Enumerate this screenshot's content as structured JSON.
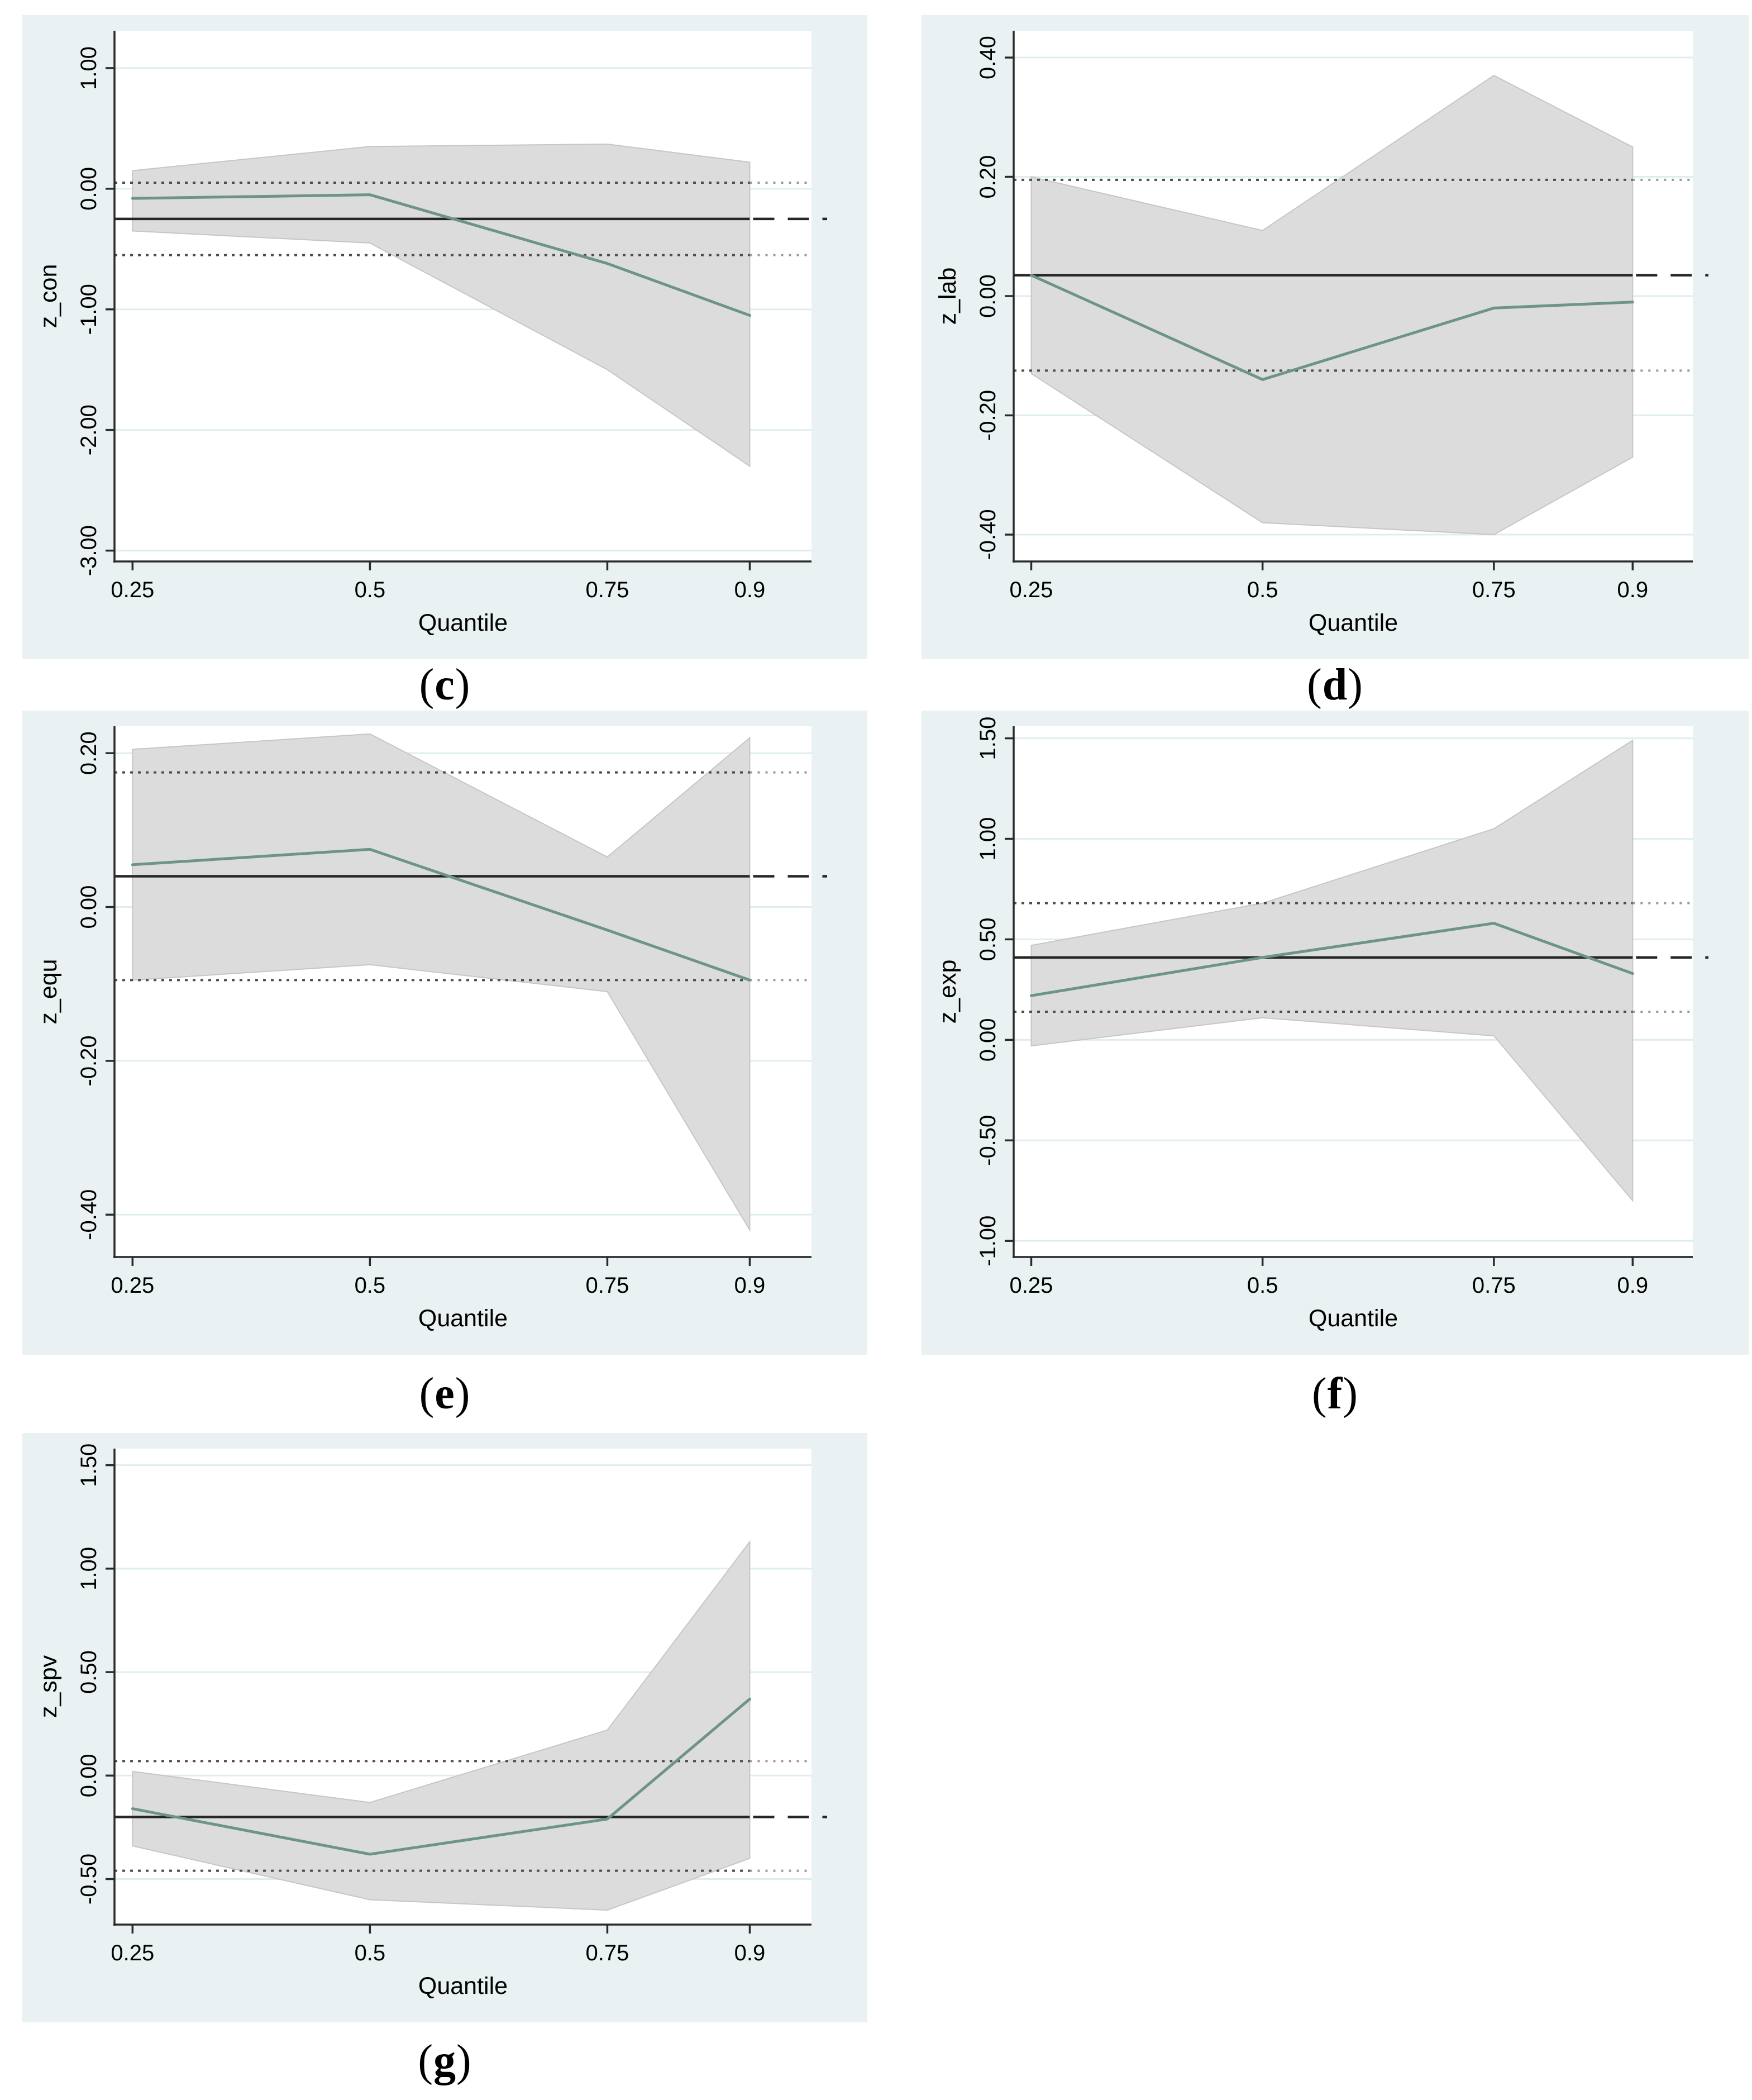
{
  "style": {
    "panel_background": "#e9f1f2",
    "plot_background": "#ffffff",
    "gridline_color": "#e0edef",
    "band_fill": "#dcdcdc",
    "band_edge": "#c6c6c6",
    "quantile_line_color": "#6d9487",
    "ols_line_color": "#262626",
    "ols_ci_dotted_color": "#4d4d4d",
    "ols_ci_dotted_color_extension": "#9a9a9a",
    "axis_color": "#2a2a2a"
  },
  "chart_data": [
    {
      "type": "line",
      "id": "c",
      "caption": {
        "open": "(",
        "letter": "c",
        "close": ")"
      },
      "ylabel": "z_con",
      "xlabel": "Quantile",
      "x": [
        0.25,
        0.5,
        0.75,
        0.9
      ],
      "xtick_labels": [
        "0.25",
        "0.5",
        "0.75",
        "0.9"
      ],
      "xlim": [
        0.231,
        0.965
      ],
      "ylim": [
        -3.09,
        1.31
      ],
      "yticks": [
        {
          "v": 1.0,
          "label": "1.00"
        },
        {
          "v": 0.0,
          "label": "0.00"
        },
        {
          "v": -1.0,
          "label": "-1.00"
        },
        {
          "v": -2.0,
          "label": "-2.00"
        },
        {
          "v": -3.0,
          "label": "-3.00"
        }
      ],
      "quantile_line": [
        -0.08,
        -0.05,
        -0.62,
        -1.05
      ],
      "band_upper": [
        0.15,
        0.35,
        0.37,
        0.22
      ],
      "band_lower": [
        -0.35,
        -0.45,
        -1.5,
        -2.3
      ],
      "ols_estimate": -0.25,
      "ols_ci_lower": -0.55,
      "ols_ci_upper": 0.05
    },
    {
      "type": "line",
      "id": "d",
      "caption": {
        "open": "(",
        "letter": "d",
        "close": ")"
      },
      "ylabel": "z_lab",
      "xlabel": "Quantile",
      "x": [
        0.25,
        0.5,
        0.75,
        0.9
      ],
      "xtick_labels": [
        "0.25",
        "0.5",
        "0.75",
        "0.9"
      ],
      "xlim": [
        0.231,
        0.965
      ],
      "ylim": [
        -0.445,
        0.445
      ],
      "yticks": [
        {
          "v": 0.4,
          "label": "0.40"
        },
        {
          "v": 0.2,
          "label": "0.20"
        },
        {
          "v": 0.0,
          "label": "0.00"
        },
        {
          "v": -0.2,
          "label": "-0.20"
        },
        {
          "v": -0.4,
          "label": "-0.40"
        }
      ],
      "quantile_line": [
        0.035,
        -0.14,
        -0.02,
        -0.01
      ],
      "band_upper": [
        0.2,
        0.11,
        0.37,
        0.25
      ],
      "band_lower": [
        -0.13,
        -0.38,
        -0.4,
        -0.27
      ],
      "ols_estimate": 0.035,
      "ols_ci_lower": -0.125,
      "ols_ci_upper": 0.195
    },
    {
      "type": "line",
      "id": "e",
      "caption": {
        "open": "(",
        "letter": "e",
        "close": ")"
      },
      "ylabel": "z_equ",
      "xlabel": "Quantile",
      "x": [
        0.25,
        0.5,
        0.75,
        0.9
      ],
      "xtick_labels": [
        "0.25",
        "0.5",
        "0.75",
        "0.9"
      ],
      "xlim": [
        0.231,
        0.965
      ],
      "ylim": [
        -0.455,
        0.235
      ],
      "yticks": [
        {
          "v": 0.2,
          "label": "0.20"
        },
        {
          "v": 0.0,
          "label": "0.00"
        },
        {
          "v": -0.2,
          "label": "-0.20"
        },
        {
          "v": -0.4,
          "label": "-0.40"
        }
      ],
      "quantile_line": [
        0.055,
        0.075,
        -0.03,
        -0.095
      ],
      "band_upper": [
        0.205,
        0.225,
        0.065,
        0.22
      ],
      "band_lower": [
        -0.095,
        -0.075,
        -0.11,
        -0.42
      ],
      "ols_estimate": 0.04,
      "ols_ci_lower": -0.095,
      "ols_ci_upper": 0.175
    },
    {
      "type": "line",
      "id": "f",
      "caption": {
        "open": "(",
        "letter": "f",
        "close": ")"
      },
      "ylabel": "z_exp",
      "xlabel": "Quantile",
      "x": [
        0.25,
        0.5,
        0.75,
        0.9
      ],
      "xtick_labels": [
        "0.25",
        "0.5",
        "0.75",
        "0.9"
      ],
      "xlim": [
        0.231,
        0.965
      ],
      "ylim": [
        -1.08,
        1.56
      ],
      "yticks": [
        {
          "v": 1.5,
          "label": "1.50"
        },
        {
          "v": 1.0,
          "label": "1.00"
        },
        {
          "v": 0.5,
          "label": "0.50"
        },
        {
          "v": 0.0,
          "label": "0.00"
        },
        {
          "v": -0.5,
          "label": "-0.50"
        },
        {
          "v": -1.0,
          "label": "-1.00"
        }
      ],
      "quantile_line": [
        0.22,
        0.41,
        0.58,
        0.33
      ],
      "band_upper": [
        0.47,
        0.68,
        1.05,
        1.49
      ],
      "band_lower": [
        -0.03,
        0.11,
        0.02,
        -0.8
      ],
      "ols_estimate": 0.41,
      "ols_ci_lower": 0.14,
      "ols_ci_upper": 0.68
    },
    {
      "type": "line",
      "id": "g",
      "caption": {
        "open": "(",
        "letter": "g",
        "close": ")"
      },
      "ylabel": "z_spv",
      "xlabel": "Quantile",
      "x": [
        0.25,
        0.5,
        0.75,
        0.9
      ],
      "xtick_labels": [
        "0.25",
        "0.5",
        "0.75",
        "0.9"
      ],
      "xlim": [
        0.231,
        0.965
      ],
      "ylim": [
        -0.72,
        1.58
      ],
      "yticks": [
        {
          "v": 1.5,
          "label": "1.50"
        },
        {
          "v": 1.0,
          "label": "1.00"
        },
        {
          "v": 0.5,
          "label": "0.50"
        },
        {
          "v": 0.0,
          "label": "0.00"
        },
        {
          "v": -0.5,
          "label": "-0.50"
        }
      ],
      "quantile_line": [
        -0.16,
        -0.38,
        -0.21,
        0.37
      ],
      "band_upper": [
        0.02,
        -0.13,
        0.22,
        1.13
      ],
      "band_lower": [
        -0.34,
        -0.6,
        -0.65,
        -0.4
      ],
      "ols_estimate": -0.2,
      "ols_ci_lower": -0.46,
      "ols_ci_upper": 0.07
    }
  ]
}
